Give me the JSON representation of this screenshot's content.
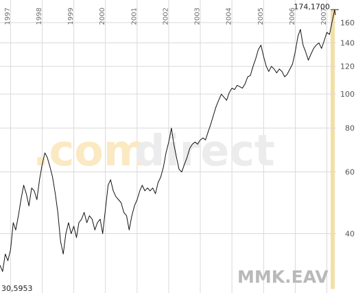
{
  "watermark": {
    "part1": ".com",
    "part2": "direct"
  },
  "chart_data": {
    "type": "line",
    "title": "",
    "xlabel": "",
    "ylabel": "",
    "symbol": "MMK.EAV",
    "y_scale": "log",
    "ylim": [
      30.6,
      174.2
    ],
    "xlim": [
      "1996-09-01",
      "2007-04-10"
    ],
    "y_ticks": [
      40,
      60,
      80,
      100,
      120,
      140,
      160
    ],
    "x_ticks": [
      "1997",
      "1998",
      "1999",
      "2000",
      "2001",
      "2002",
      "2003",
      "2004",
      "2005",
      "2006",
      "2007"
    ],
    "grid": true,
    "high_label": "174,1700",
    "low_label": "30,5953",
    "colors": {
      "line": "#111111",
      "grid": "#d9d9d9",
      "highlight_band": "#f3dfa6",
      "watermark_com": "#fbe9c2",
      "watermark_direct": "#ececec"
    },
    "points": [
      [
        "1996-09-01",
        32.5
      ],
      [
        "1996-10-01",
        31.2
      ],
      [
        "1996-11-01",
        35.0
      ],
      [
        "1996-12-01",
        33.5
      ],
      [
        "1997-01-01",
        36.0
      ],
      [
        "1997-02-01",
        43.0
      ],
      [
        "1997-03-01",
        41.0
      ],
      [
        "1997-04-01",
        45.0
      ],
      [
        "1997-05-01",
        50.0
      ],
      [
        "1997-06-01",
        55.0
      ],
      [
        "1997-07-01",
        52.0
      ],
      [
        "1997-08-01",
        48.0
      ],
      [
        "1997-09-01",
        54.0
      ],
      [
        "1997-10-01",
        53.0
      ],
      [
        "1997-11-01",
        50.0
      ],
      [
        "1997-12-01",
        57.0
      ],
      [
        "1998-01-01",
        63.0
      ],
      [
        "1998-02-01",
        68.0
      ],
      [
        "1998-03-01",
        66.0
      ],
      [
        "1998-04-01",
        62.0
      ],
      [
        "1998-05-01",
        58.0
      ],
      [
        "1998-06-01",
        52.0
      ],
      [
        "1998-07-01",
        46.0
      ],
      [
        "1998-08-01",
        38.0
      ],
      [
        "1998-09-01",
        35.0
      ],
      [
        "1998-10-01",
        40.0
      ],
      [
        "1998-11-01",
        43.0
      ],
      [
        "1998-12-01",
        40.0
      ],
      [
        "1999-01-01",
        42.0
      ],
      [
        "1999-02-01",
        39.0
      ],
      [
        "1999-03-01",
        43.0
      ],
      [
        "1999-04-01",
        44.0
      ],
      [
        "1999-05-01",
        46.0
      ],
      [
        "1999-06-01",
        43.0
      ],
      [
        "1999-07-01",
        45.0
      ],
      [
        "1999-08-01",
        44.0
      ],
      [
        "1999-09-01",
        41.0
      ],
      [
        "1999-10-01",
        43.0
      ],
      [
        "1999-11-01",
        44.0
      ],
      [
        "1999-12-01",
        40.0
      ],
      [
        "2000-01-01",
        47.0
      ],
      [
        "2000-02-01",
        55.0
      ],
      [
        "2000-03-01",
        57.0
      ],
      [
        "2000-04-01",
        53.0
      ],
      [
        "2000-05-01",
        51.0
      ],
      [
        "2000-06-01",
        50.0
      ],
      [
        "2000-07-01",
        49.0
      ],
      [
        "2000-08-01",
        46.0
      ],
      [
        "2000-09-01",
        45.0
      ],
      [
        "2000-10-01",
        41.0
      ],
      [
        "2000-11-01",
        45.0
      ],
      [
        "2000-12-01",
        48.0
      ],
      [
        "2001-01-01",
        50.0
      ],
      [
        "2001-02-01",
        53.0
      ],
      [
        "2001-03-01",
        55.0
      ],
      [
        "2001-04-01",
        53.0
      ],
      [
        "2001-05-01",
        54.0
      ],
      [
        "2001-06-01",
        53.0
      ],
      [
        "2001-07-01",
        54.0
      ],
      [
        "2001-08-01",
        52.0
      ],
      [
        "2001-09-01",
        56.0
      ],
      [
        "2001-10-01",
        58.0
      ],
      [
        "2001-11-01",
        62.0
      ],
      [
        "2001-12-01",
        68.0
      ],
      [
        "2002-01-01",
        73.0
      ],
      [
        "2002-02-01",
        80.0
      ],
      [
        "2002-03-01",
        72.0
      ],
      [
        "2002-04-01",
        66.0
      ],
      [
        "2002-05-01",
        61.0
      ],
      [
        "2002-06-01",
        60.0
      ],
      [
        "2002-07-01",
        63.0
      ],
      [
        "2002-08-01",
        66.0
      ],
      [
        "2002-09-01",
        70.0
      ],
      [
        "2002-10-01",
        72.0
      ],
      [
        "2002-11-01",
        73.0
      ],
      [
        "2002-12-01",
        72.0
      ],
      [
        "2003-01-01",
        74.0
      ],
      [
        "2003-02-01",
        75.0
      ],
      [
        "2003-03-01",
        74.0
      ],
      [
        "2003-04-01",
        78.0
      ],
      [
        "2003-05-01",
        82.0
      ],
      [
        "2003-06-01",
        87.0
      ],
      [
        "2003-07-01",
        92.0
      ],
      [
        "2003-08-01",
        96.0
      ],
      [
        "2003-09-01",
        100.0
      ],
      [
        "2003-10-01",
        98.0
      ],
      [
        "2003-11-01",
        96.0
      ],
      [
        "2003-12-01",
        101.0
      ],
      [
        "2004-01-01",
        104.0
      ],
      [
        "2004-02-01",
        103.0
      ],
      [
        "2004-03-01",
        106.0
      ],
      [
        "2004-04-01",
        105.0
      ],
      [
        "2004-05-01",
        104.0
      ],
      [
        "2004-06-01",
        107.0
      ],
      [
        "2004-07-01",
        112.0
      ],
      [
        "2004-08-01",
        113.0
      ],
      [
        "2004-09-01",
        120.0
      ],
      [
        "2004-10-01",
        126.0
      ],
      [
        "2004-11-01",
        134.0
      ],
      [
        "2004-12-01",
        138.0
      ],
      [
        "2005-01-01",
        128.0
      ],
      [
        "2005-02-01",
        120.0
      ],
      [
        "2005-03-01",
        116.0
      ],
      [
        "2005-04-01",
        120.0
      ],
      [
        "2005-05-01",
        118.0
      ],
      [
        "2005-06-01",
        115.0
      ],
      [
        "2005-07-01",
        118.0
      ],
      [
        "2005-08-01",
        116.0
      ],
      [
        "2005-09-01",
        112.0
      ],
      [
        "2005-10-01",
        114.0
      ],
      [
        "2005-11-01",
        118.0
      ],
      [
        "2005-12-01",
        122.0
      ],
      [
        "2006-01-01",
        132.0
      ],
      [
        "2006-02-01",
        146.0
      ],
      [
        "2006-03-01",
        153.0
      ],
      [
        "2006-04-01",
        138.0
      ],
      [
        "2006-05-01",
        132.0
      ],
      [
        "2006-06-01",
        125.0
      ],
      [
        "2006-07-01",
        130.0
      ],
      [
        "2006-08-01",
        135.0
      ],
      [
        "2006-09-01",
        138.0
      ],
      [
        "2006-10-01",
        140.0
      ],
      [
        "2006-11-01",
        135.0
      ],
      [
        "2006-12-01",
        142.0
      ],
      [
        "2007-01-01",
        150.0
      ],
      [
        "2007-02-01",
        148.0
      ],
      [
        "2007-03-01",
        160.0
      ],
      [
        "2007-04-01",
        174.17
      ],
      [
        "2007-04-10",
        168.0
      ]
    ]
  }
}
